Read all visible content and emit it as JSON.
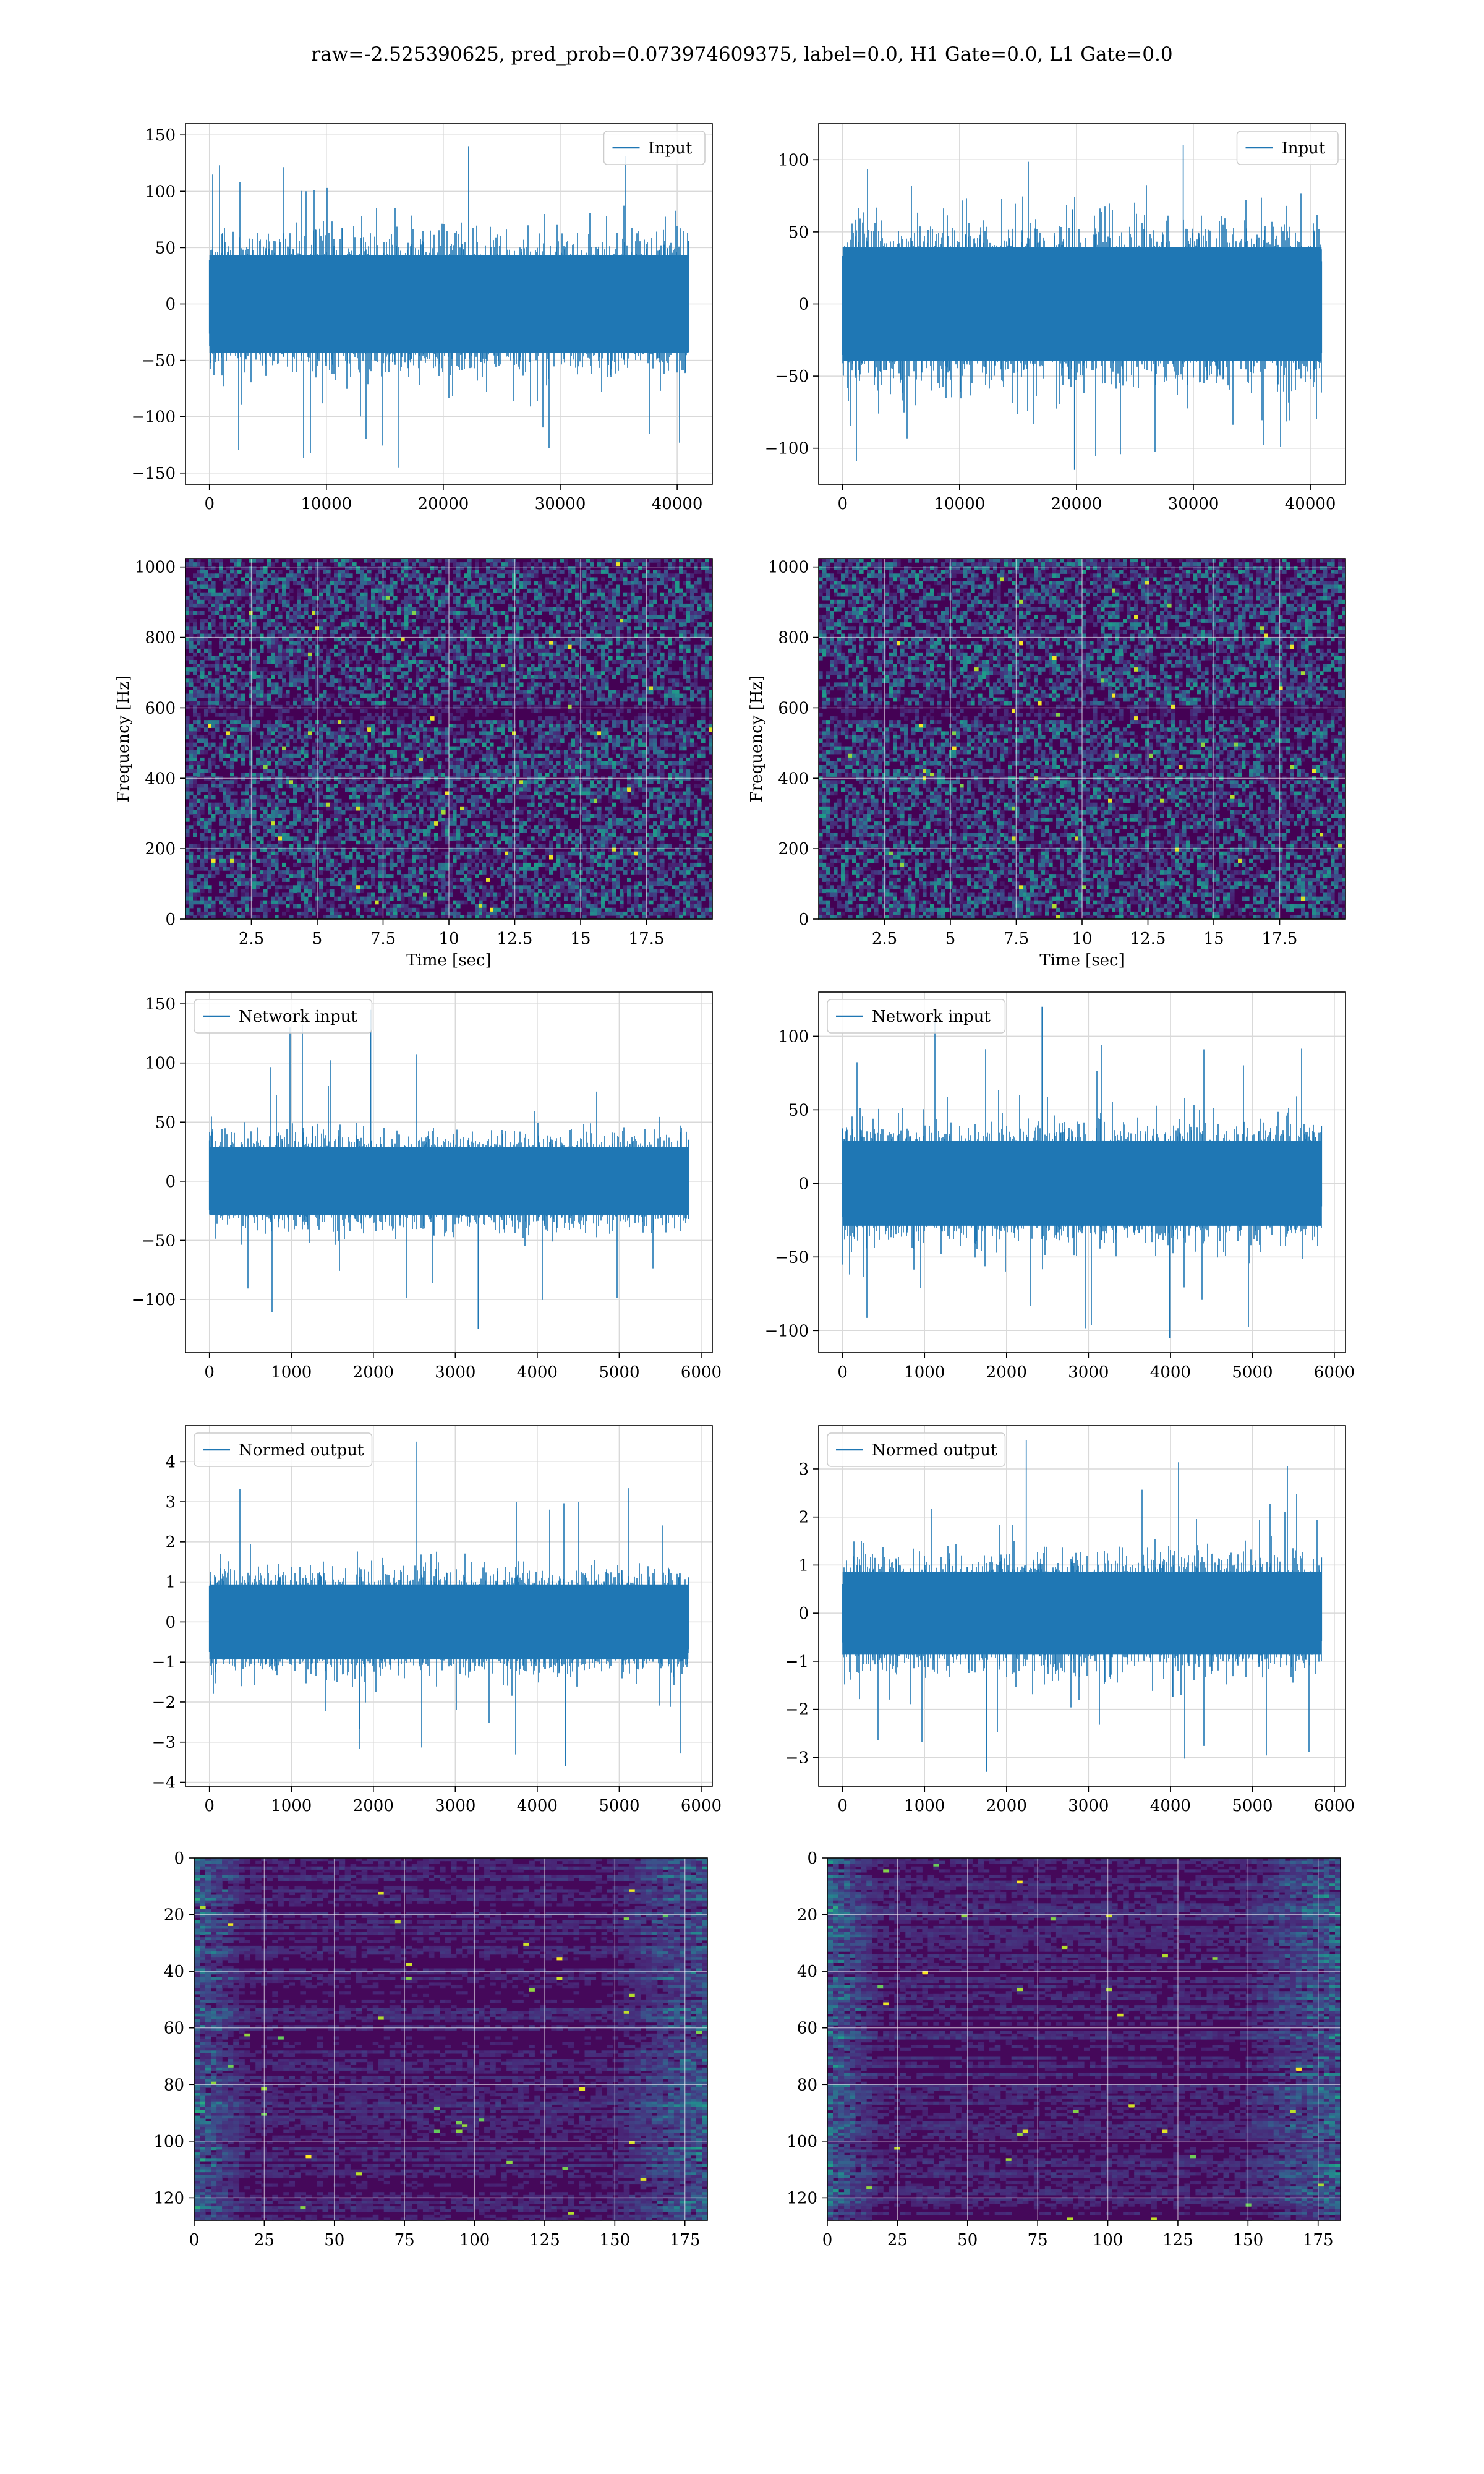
{
  "figure": {
    "suptitle": "raw=-2.525390625, pred_prob=0.073974609375, label=0.0, H1 Gate=0.0, L1 Gate=0.0",
    "line_color": "#1f77b4",
    "grid_color": "#d9d9d9",
    "colormap": "viridis"
  },
  "chart_data": [
    {
      "id": "input-h1",
      "type": "line",
      "title": "",
      "xlabel": "",
      "ylabel": "",
      "legend": {
        "label": "Input",
        "position": "upper-right"
      },
      "series": [
        {
          "name": "Input",
          "n_samples": 40960,
          "envelope_typical": [
            -60,
            60
          ],
          "peak_min": -145,
          "peak_max": 140
        }
      ],
      "xlim": [
        -2048,
        43008
      ],
      "ylim": [
        -160,
        160
      ],
      "xticks": [
        0,
        10000,
        20000,
        30000,
        40000
      ],
      "yticks": [
        -150,
        -100,
        -50,
        0,
        50,
        100,
        150
      ],
      "grid": true
    },
    {
      "id": "input-l1",
      "type": "line",
      "title": "",
      "xlabel": "",
      "ylabel": "",
      "legend": {
        "label": "Input",
        "position": "upper-right"
      },
      "series": [
        {
          "name": "Input",
          "n_samples": 40960,
          "envelope_typical": [
            -55,
            55
          ],
          "peak_min": -115,
          "peak_max": 110
        }
      ],
      "xlim": [
        -2048,
        43008
      ],
      "ylim": [
        -125,
        125
      ],
      "xticks": [
        0,
        10000,
        20000,
        30000,
        40000
      ],
      "yticks": [
        -100,
        -50,
        0,
        50,
        100
      ],
      "grid": true
    },
    {
      "id": "spectrogram-h1",
      "type": "heatmap",
      "title": "",
      "xlabel": "Time [sec]",
      "ylabel": "Frequency [Hz]",
      "xlim": [
        0,
        20
      ],
      "ylim": [
        0,
        1024
      ],
      "xticks": [
        2.5,
        5.0,
        7.5,
        10.0,
        12.5,
        15.0,
        17.5
      ],
      "yticks": [
        0,
        200,
        400,
        600,
        800,
        1000
      ],
      "colormap": "viridis",
      "intensity": "low noise with sparse bright pixels",
      "grid": true
    },
    {
      "id": "spectrogram-l1",
      "type": "heatmap",
      "title": "",
      "xlabel": "Time [sec]",
      "ylabel": "Frequency [Hz]",
      "xlim": [
        0,
        20
      ],
      "ylim": [
        0,
        1024
      ],
      "xticks": [
        2.5,
        5.0,
        7.5,
        10.0,
        12.5,
        15.0,
        17.5
      ],
      "yticks": [
        0,
        200,
        400,
        600,
        800,
        1000
      ],
      "colormap": "viridis",
      "intensity": "low noise with sparse bright pixels",
      "grid": true
    },
    {
      "id": "network-input-h1",
      "type": "line",
      "title": "",
      "xlabel": "",
      "ylabel": "",
      "legend": {
        "label": "Network input",
        "position": "upper-left"
      },
      "series": [
        {
          "name": "Network input",
          "n_samples": 5844,
          "envelope_typical": [
            -40,
            40
          ],
          "peak_min": -125,
          "peak_max": 145
        }
      ],
      "xlim": [
        -292,
        6136
      ],
      "ylim": [
        -145,
        160
      ],
      "xticks": [
        0,
        1000,
        2000,
        3000,
        4000,
        5000,
        6000
      ],
      "yticks": [
        -100,
        -50,
        0,
        50,
        100,
        150
      ],
      "grid": true
    },
    {
      "id": "network-input-l1",
      "type": "line",
      "title": "",
      "xlabel": "",
      "ylabel": "",
      "legend": {
        "label": "Network input",
        "position": "upper-left"
      },
      "series": [
        {
          "name": "Network input",
          "n_samples": 5844,
          "envelope_typical": [
            -40,
            40
          ],
          "peak_min": -105,
          "peak_max": 120
        }
      ],
      "xlim": [
        -292,
        6136
      ],
      "ylim": [
        -115,
        130
      ],
      "xticks": [
        0,
        1000,
        2000,
        3000,
        4000,
        5000,
        6000
      ],
      "yticks": [
        -100,
        -50,
        0,
        50,
        100
      ],
      "grid": true
    },
    {
      "id": "normed-output-h1",
      "type": "line",
      "title": "",
      "xlabel": "",
      "ylabel": "",
      "legend": {
        "label": "Normed output",
        "position": "upper-left"
      },
      "series": [
        {
          "name": "Normed output",
          "n_samples": 5844,
          "envelope_typical": [
            -1.3,
            1.3
          ],
          "peak_min": -3.6,
          "peak_max": 4.5
        }
      ],
      "xlim": [
        -292,
        6136
      ],
      "ylim": [
        -4.1,
        4.9
      ],
      "xticks": [
        0,
        1000,
        2000,
        3000,
        4000,
        5000,
        6000
      ],
      "yticks": [
        -4,
        -3,
        -2,
        -1,
        0,
        1,
        2,
        3,
        4
      ],
      "grid": true
    },
    {
      "id": "normed-output-l1",
      "type": "line",
      "title": "",
      "xlabel": "",
      "ylabel": "",
      "legend": {
        "label": "Normed output",
        "position": "upper-left"
      },
      "series": [
        {
          "name": "Normed output",
          "n_samples": 5844,
          "envelope_typical": [
            -1.2,
            1.2
          ],
          "peak_min": -3.3,
          "peak_max": 3.6
        }
      ],
      "xlim": [
        -292,
        6136
      ],
      "ylim": [
        -3.6,
        3.9
      ],
      "xticks": [
        0,
        1000,
        2000,
        3000,
        4000,
        5000,
        6000
      ],
      "yticks": [
        -3,
        -2,
        -1,
        0,
        1,
        2,
        3
      ],
      "grid": true
    },
    {
      "id": "feature-map-h1",
      "type": "heatmap",
      "title": "",
      "xlabel": "",
      "ylabel": "",
      "rows": 128,
      "cols": 183,
      "xlim": [
        0,
        183
      ],
      "ylim": [
        128,
        0
      ],
      "xticks": [
        0,
        25,
        50,
        75,
        100,
        125,
        150,
        175
      ],
      "yticks": [
        0,
        20,
        40,
        60,
        80,
        100,
        120
      ],
      "colormap": "viridis",
      "intensity": "horizontal streaks, brighter near x=0-20 and x=150-183",
      "grid": true
    },
    {
      "id": "feature-map-l1",
      "type": "heatmap",
      "title": "",
      "xlabel": "",
      "ylabel": "",
      "rows": 128,
      "cols": 183,
      "xlim": [
        0,
        183
      ],
      "ylim": [
        128,
        0
      ],
      "xticks": [
        0,
        25,
        50,
        75,
        100,
        125,
        150,
        175
      ],
      "yticks": [
        0,
        20,
        40,
        60,
        80,
        100,
        120
      ],
      "colormap": "viridis",
      "intensity": "horizontal streaks, brighter near x=0-20 and x=150-183",
      "grid": true
    }
  ]
}
